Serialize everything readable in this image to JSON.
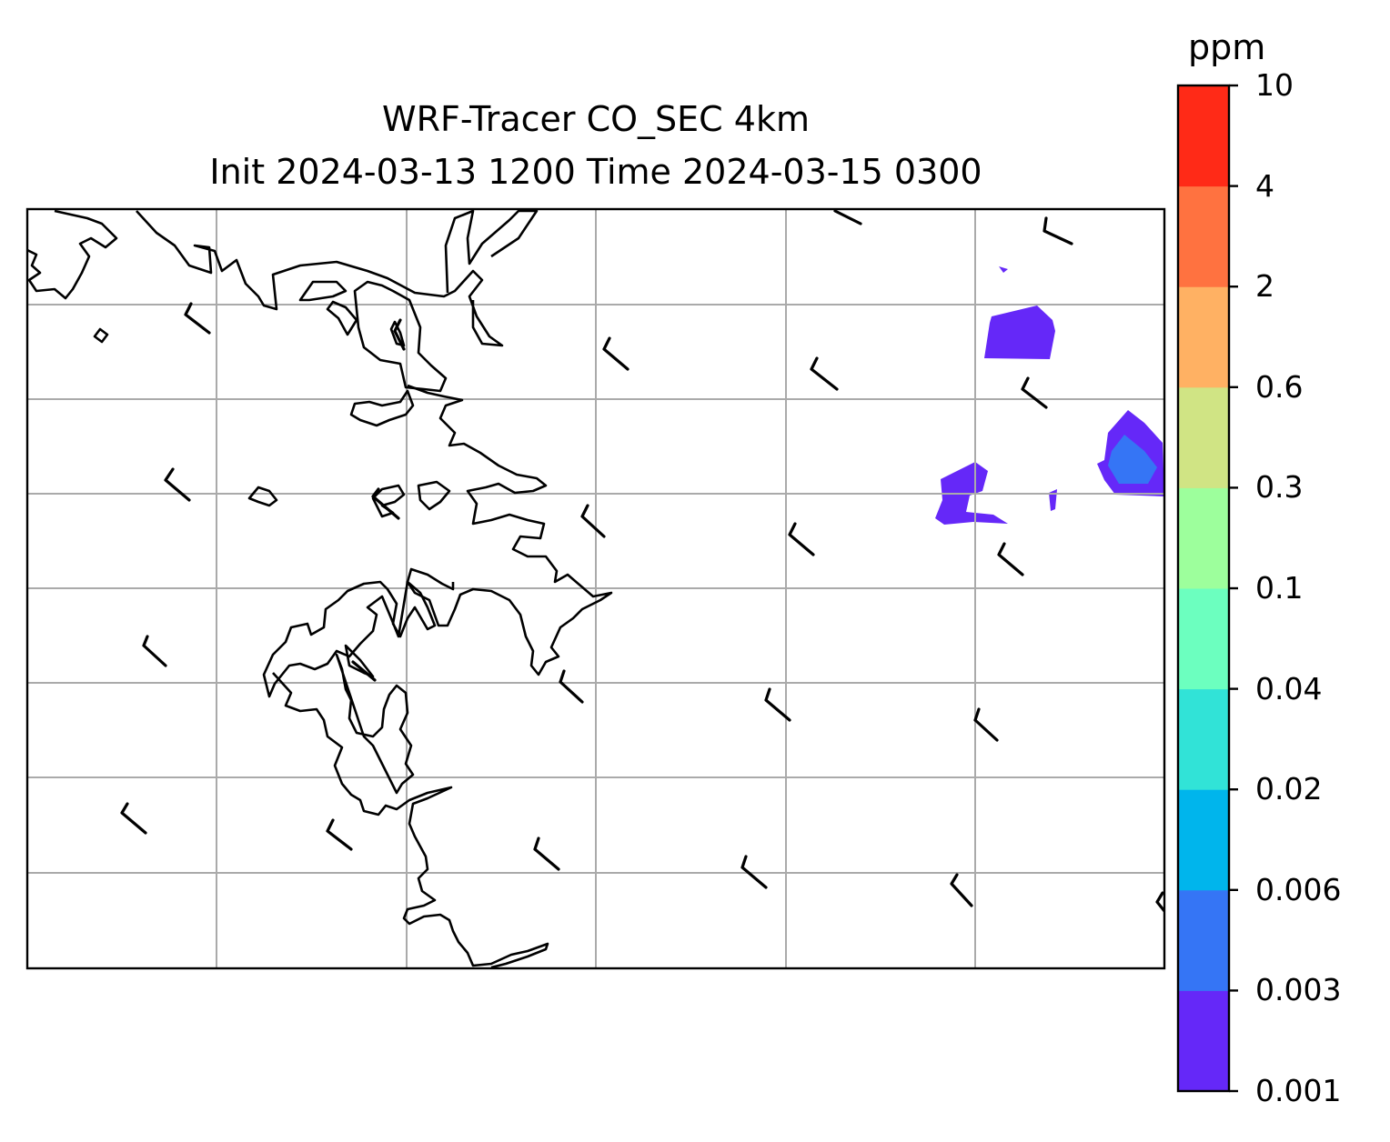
{
  "title_line1": "WRF-Tracer CO_SEC 4km",
  "title_line2": "Init 2024-03-13 1200 Time 2024-03-15 0300",
  "colorbar": {
    "unit": "ppm",
    "levels": [
      "0.001",
      "0.003",
      "0.006",
      "0.02",
      "0.04",
      "0.1",
      "0.3",
      "0.6",
      "2",
      "4",
      "10"
    ],
    "colors": [
      "#6528f8",
      "#3575f5",
      "#00b5ec",
      "#31e3d7",
      "#6cffbf",
      "#9dff9c",
      "#d0e484",
      "#ffb163",
      "#ff7240",
      "#ff2a17"
    ]
  },
  "map": {
    "gridlines": true,
    "gridline_color": "#aaaaaa",
    "coastline_color": "#000000"
  }
}
